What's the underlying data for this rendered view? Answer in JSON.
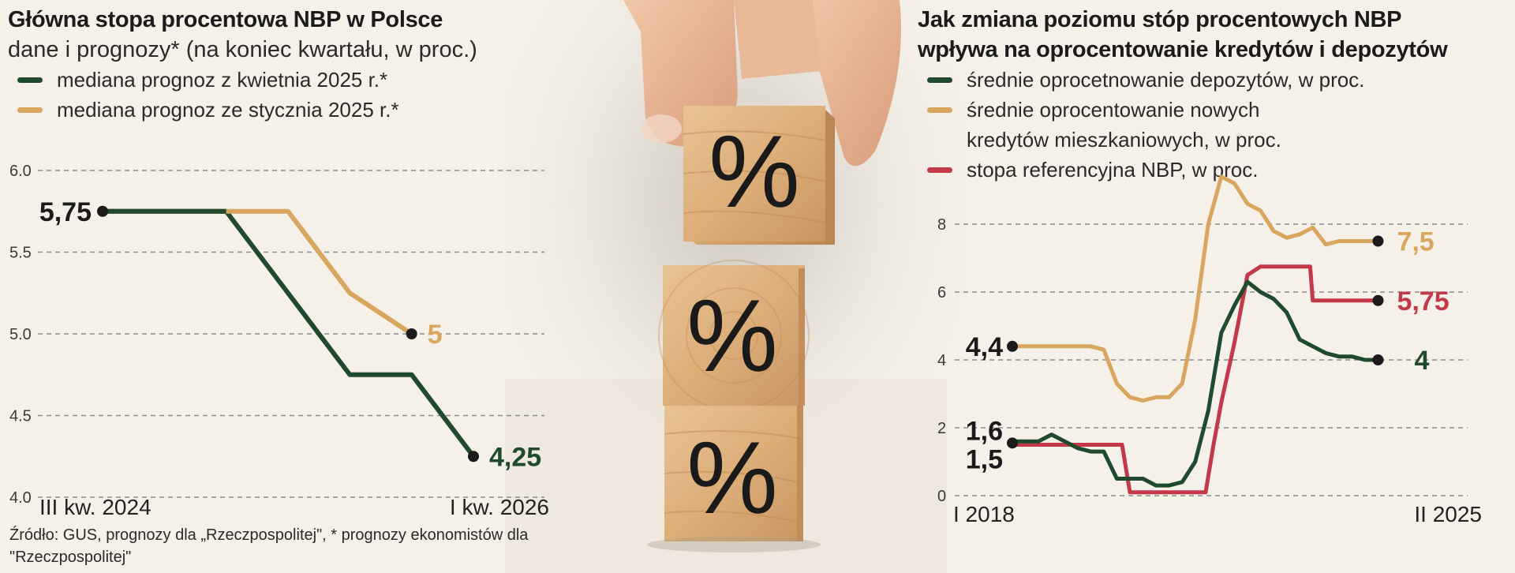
{
  "left": {
    "title": "Główna stopa procentowa NBP w Polsce",
    "subtitle": "dane i prognozy* (na koniec kwartału, w proc.)",
    "legend": [
      {
        "label": "mediana prognoz z kwietnia 2025 r.*",
        "color": "#1f4a2c"
      },
      {
        "label": "mediana prognoz ze stycznia 2025 r.*",
        "color": "#d9a660"
      }
    ]
  },
  "right": {
    "title_line1": "Jak zmiana poziomu stóp procentowych NBP",
    "title_line2": "wpływa na oprocentowanie kredytów i depozytów",
    "legend": [
      {
        "label": "średnie oprocetnowanie depozytów, w proc.",
        "color": "#1f4a2c"
      },
      {
        "label": "średnie oprocentowanie nowych kredytów mieszkaniowych, w proc.",
        "color": "#d9a660"
      },
      {
        "label": "stopa referencyjna NBP, w proc.",
        "color": "#c4394a"
      }
    ]
  },
  "source": "Źródło: GUS, prognozy dla „Rzeczpospolitej\", * prognozy ekonomistów dla \"Rzeczpospolitej\"",
  "photo": {
    "symbol": "%"
  },
  "chart_data": [
    {
      "type": "line",
      "xlabel": "",
      "ylabel": "",
      "x_tick_labels": [
        "III kw. 2024",
        "I kw. 2026"
      ],
      "x": [
        0,
        1,
        2,
        3,
        4,
        5,
        6
      ],
      "ylim": [
        4.0,
        6.0
      ],
      "yticks": [
        "4.0",
        "4.5",
        "5.0",
        "5.5",
        "6.0"
      ],
      "grid": true,
      "series": [
        {
          "name": "mediana prognoz z kwietnia 2025 r.*",
          "color": "#1f4a2c",
          "values": [
            5.75,
            5.75,
            5.75,
            5.25,
            4.75,
            4.75,
            4.25
          ]
        },
        {
          "name": "mediana prognoz ze stycznia 2025 r.*",
          "color": "#d9a660",
          "values": [
            5.75,
            5.75,
            5.75,
            5.75,
            5.25,
            5.0,
            null
          ]
        }
      ],
      "annotations": [
        {
          "text": "5,75",
          "color": "#1b1b1b"
        },
        {
          "text": "5",
          "color": "#d9a660"
        },
        {
          "text": "4,25",
          "color": "#1f4a2c"
        }
      ]
    },
    {
      "type": "line",
      "xlabel": "",
      "ylabel": "",
      "x_tick_labels": [
        "I 2018",
        "II 2025"
      ],
      "xlim": [
        2018.0,
        2025.25
      ],
      "ylim": [
        0,
        9
      ],
      "yticks": [
        "0",
        "2",
        "4",
        "6",
        "8"
      ],
      "grid": true,
      "series": [
        {
          "name": "średnie oprocentowanie nowych kredytów mieszkaniowych, w proc.",
          "color": "#d9a660",
          "x": [
            2018.0,
            2018.5,
            2019.0,
            2019.5,
            2019.75,
            2020.0,
            2020.25,
            2020.5,
            2020.75,
            2021.0,
            2021.25,
            2021.5,
            2021.75,
            2022.0,
            2022.25,
            2022.5,
            2022.75,
            2023.0,
            2023.25,
            2023.5,
            2023.75,
            2024.0,
            2024.25,
            2024.5,
            2024.75,
            2025.0
          ],
          "values": [
            4.4,
            4.4,
            4.4,
            4.4,
            4.3,
            3.3,
            2.9,
            2.8,
            2.9,
            2.9,
            3.3,
            5.2,
            8.0,
            9.4,
            9.2,
            8.6,
            8.4,
            7.8,
            7.6,
            7.7,
            7.9,
            7.4,
            7.5,
            7.5,
            7.5,
            7.5
          ]
        },
        {
          "name": "stopa referencyjna NBP, w proc.",
          "color": "#c4394a",
          "x": [
            2018.0,
            2020.1,
            2020.25,
            2020.5,
            2021.0,
            2021.7,
            2021.85,
            2022.0,
            2022.25,
            2022.5,
            2022.75,
            2023.0,
            2023.5,
            2023.7,
            2023.75,
            2024.0,
            2024.5,
            2025.0
          ],
          "values": [
            1.5,
            1.5,
            0.1,
            0.1,
            0.1,
            0.1,
            1.5,
            2.75,
            4.5,
            6.5,
            6.75,
            6.75,
            6.75,
            6.75,
            5.75,
            5.75,
            5.75,
            5.75
          ]
        },
        {
          "name": "średnie oprocetnowanie depozytów, w proc.",
          "color": "#1f4a2c",
          "x": [
            2018.0,
            2018.5,
            2018.75,
            2019.0,
            2019.25,
            2019.5,
            2019.75,
            2020.0,
            2020.25,
            2020.5,
            2020.75,
            2021.0,
            2021.25,
            2021.5,
            2021.75,
            2022.0,
            2022.25,
            2022.5,
            2022.75,
            2023.0,
            2023.25,
            2023.5,
            2023.75,
            2024.0,
            2024.25,
            2024.5,
            2024.75,
            2025.0
          ],
          "values": [
            1.6,
            1.6,
            1.8,
            1.6,
            1.4,
            1.3,
            1.3,
            0.5,
            0.5,
            0.5,
            0.3,
            0.3,
            0.4,
            1.0,
            2.5,
            4.8,
            5.6,
            6.3,
            6.0,
            5.8,
            5.4,
            4.6,
            4.4,
            4.2,
            4.1,
            4.1,
            4.0,
            4.0
          ]
        }
      ],
      "annotations": [
        {
          "text": "4,4",
          "color": "#1b1b1b"
        },
        {
          "text": "1,6",
          "color": "#1b1b1b"
        },
        {
          "text": "1,5",
          "color": "#1b1b1b"
        },
        {
          "text": "7,5",
          "color": "#d9a660"
        },
        {
          "text": "5,75",
          "color": "#c4394a"
        },
        {
          "text": "4",
          "color": "#1f4a2c"
        }
      ]
    }
  ]
}
